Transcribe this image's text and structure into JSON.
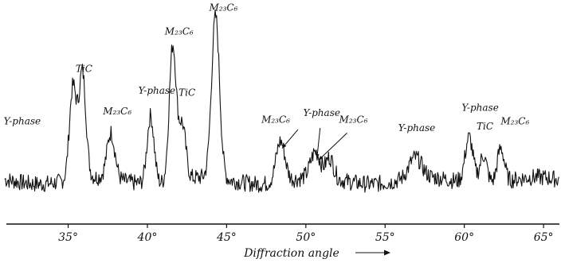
{
  "chart_data": {
    "type": "line",
    "title": "",
    "xlabel": "Diffraction angle",
    "ylabel": "",
    "xlim": [
      31,
      66
    ],
    "grid": false,
    "x_ticks": [
      {
        "value": 35,
        "label": "35°"
      },
      {
        "value": 40,
        "label": "40°"
      },
      {
        "value": 45,
        "label": "45°"
      },
      {
        "value": 50,
        "label": "50°"
      },
      {
        "value": 55,
        "label": "55°"
      },
      {
        "value": 60,
        "label": "60°"
      },
      {
        "value": 65,
        "label": "65°"
      }
    ],
    "peaks": [
      {
        "x": 35.3,
        "amp": 0.54,
        "w": 0.22
      },
      {
        "x": 35.9,
        "amp": 0.62,
        "w": 0.22
      },
      {
        "x": 37.7,
        "amp": 0.27,
        "w": 0.25
      },
      {
        "x": 40.2,
        "amp": 0.4,
        "w": 0.22
      },
      {
        "x": 41.6,
        "amp": 0.8,
        "w": 0.22
      },
      {
        "x": 42.2,
        "amp": 0.32,
        "w": 0.22
      },
      {
        "x": 44.3,
        "amp": 0.95,
        "w": 0.25
      },
      {
        "x": 48.4,
        "amp": 0.24,
        "w": 0.28
      },
      {
        "x": 50.6,
        "amp": 0.15,
        "w": 0.3
      },
      {
        "x": 51.5,
        "amp": 0.12,
        "w": 0.25
      },
      {
        "x": 56.9,
        "amp": 0.12,
        "w": 0.4
      },
      {
        "x": 60.3,
        "amp": 0.27,
        "w": 0.25
      },
      {
        "x": 61.2,
        "amp": 0.17,
        "w": 0.22
      },
      {
        "x": 62.3,
        "amp": 0.2,
        "w": 0.22
      }
    ],
    "labels": [
      {
        "x": 32.1,
        "y": 0.38,
        "text": "Y-phase"
      },
      {
        "x": 36.0,
        "y": 0.69,
        "text": "TiC"
      },
      {
        "x": 38.1,
        "y": 0.44,
        "text": "M₂₃C₆"
      },
      {
        "x": 40.6,
        "y": 0.56,
        "text": "Y-phase"
      },
      {
        "x": 42.0,
        "y": 0.91,
        "text": "M₂₃C₆"
      },
      {
        "x": 42.5,
        "y": 0.55,
        "text": "TiC"
      },
      {
        "x": 44.8,
        "y": 1.05,
        "text": "M₂₃C₆"
      },
      {
        "x": 48.1,
        "y": 0.39,
        "text": "M₂₃C₆"
      },
      {
        "x": 51.0,
        "y": 0.43,
        "text": "Y-phase"
      },
      {
        "x": 53.0,
        "y": 0.39,
        "text": "M₂₃C₆"
      },
      {
        "x": 57.0,
        "y": 0.34,
        "text": "Y-phase"
      },
      {
        "x": 61.0,
        "y": 0.46,
        "text": "Y-phase"
      },
      {
        "x": 61.3,
        "y": 0.35,
        "text": "TiC"
      },
      {
        "x": 63.2,
        "y": 0.38,
        "text": "M₂₃C₆"
      }
    ],
    "arrows": [
      {
        "from": [
          49.5,
          0.35
        ],
        "to": [
          48.5,
          0.24
        ]
      },
      {
        "from": [
          50.9,
          0.36
        ],
        "to": [
          50.7,
          0.18
        ]
      },
      {
        "from": [
          52.6,
          0.33
        ],
        "to": [
          50.8,
          0.17
        ]
      }
    ]
  }
}
